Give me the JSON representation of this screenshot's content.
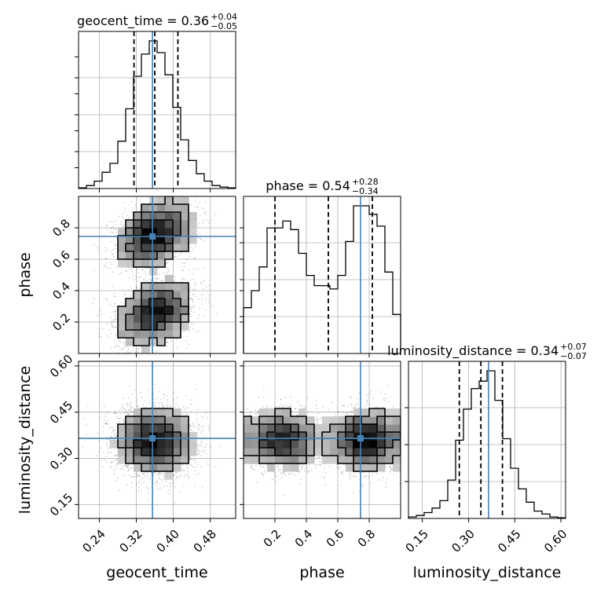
{
  "chart_data": {
    "type": "corner",
    "parameters": [
      "geocent_time",
      "phase",
      "luminosity_distance"
    ],
    "axis_labels": [
      "geocent_time",
      "phase",
      "luminosity_distance"
    ],
    "ranges": [
      [
        0.195,
        0.535
      ],
      [
        0.0,
        1.0
      ],
      [
        0.105,
        0.615
      ]
    ],
    "truths": [
      0.355,
      0.745,
      0.365
    ],
    "ticks": [
      {
        "values": [
          0.24,
          0.32,
          0.4,
          0.48
        ],
        "labels": [
          "0.24",
          "0.32",
          "0.40",
          "0.48"
        ]
      },
      {
        "values": [
          0.2,
          0.4,
          0.6,
          0.8
        ],
        "labels": [
          "0.2",
          "0.4",
          "0.6",
          "0.8"
        ]
      },
      {
        "values": [
          0.15,
          0.3,
          0.45,
          0.6
        ],
        "labels": [
          "0.15",
          "0.30",
          "0.45",
          "0.60"
        ]
      }
    ],
    "titles": [
      {
        "text": "geocent_time = 0.36",
        "sup": "+0.04",
        "sub": "−0.05"
      },
      {
        "text": "phase = 0.54",
        "sup": "+0.28",
        "sub": "−0.34"
      },
      {
        "text": "luminosity_distance = 0.34",
        "sup": "+0.07",
        "sub": "−0.07"
      }
    ],
    "quantiles": [
      [
        0.315,
        0.36,
        0.41
      ],
      [
        0.2,
        0.54,
        0.82
      ],
      [
        0.27,
        0.34,
        0.41
      ]
    ],
    "histograms": [
      {
        "edges_start": 0.195,
        "bin_width": 0.017,
        "counts": [
          0.5,
          2,
          5,
          11,
          17,
          32,
          54,
          76,
          91,
          100,
          92,
          77,
          55,
          33,
          19,
          10,
          5,
          2,
          1,
          0.5
        ]
      },
      {
        "edges_start": 0.0,
        "bin_width": 0.05,
        "counts": [
          27,
          37,
          51,
          74,
          74,
          78,
          73,
          59,
          46,
          40,
          40,
          38,
          46,
          66,
          87,
          87,
          82,
          75,
          48,
          23
        ]
      },
      {
        "edges_start": 0.105,
        "bin_width": 0.0255,
        "counts": [
          1,
          2,
          4,
          7,
          12,
          26,
          53,
          74,
          88,
          93,
          100,
          80,
          54,
          34,
          20,
          11,
          5,
          3,
          1,
          0.5
        ]
      }
    ],
    "grid": true,
    "colors": {
      "truth": "#4682b4",
      "ink": "#000000",
      "grid": "#b0b0b0",
      "points": "#000000"
    }
  }
}
